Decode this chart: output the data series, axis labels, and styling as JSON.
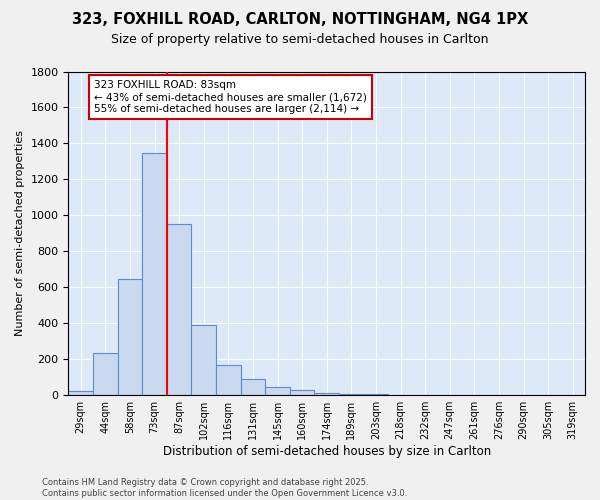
{
  "title": "323, FOXHILL ROAD, CARLTON, NOTTINGHAM, NG4 1PX",
  "subtitle": "Size of property relative to semi-detached houses in Carlton",
  "xlabel": "Distribution of semi-detached houses by size in Carlton",
  "ylabel": "Number of semi-detached properties",
  "bin_labels": [
    "29sqm",
    "44sqm",
    "58sqm",
    "73sqm",
    "87sqm",
    "102sqm",
    "116sqm",
    "131sqm",
    "145sqm",
    "160sqm",
    "174sqm",
    "189sqm",
    "203sqm",
    "218sqm",
    "232sqm",
    "247sqm",
    "261sqm",
    "276sqm",
    "290sqm",
    "305sqm",
    "319sqm"
  ],
  "bar_heights": [
    20,
    230,
    645,
    1345,
    950,
    390,
    165,
    90,
    45,
    25,
    10,
    3,
    2,
    0,
    0,
    0,
    0,
    0,
    0,
    0,
    0
  ],
  "bar_color": "#c9d9f0",
  "bar_edge_color": "#5b8dc8",
  "property_size": 83,
  "red_line_x": 3.5,
  "annotation_title": "323 FOXHILL ROAD: 83sqm",
  "annotation_line1": "← 43% of semi-detached houses are smaller (1,672)",
  "annotation_line2": "55% of semi-detached houses are larger (2,114) →",
  "annotation_box_facecolor": "#ffffff",
  "annotation_box_edgecolor": "#cc0000",
  "ylim": [
    0,
    1800
  ],
  "yticks": [
    0,
    200,
    400,
    600,
    800,
    1000,
    1200,
    1400,
    1600,
    1800
  ],
  "background_color": "#dde8f8",
  "fig_background_color": "#f0f0f0",
  "footer_line1": "Contains HM Land Registry data © Crown copyright and database right 2025.",
  "footer_line2": "Contains public sector information licensed under the Open Government Licence v3.0."
}
